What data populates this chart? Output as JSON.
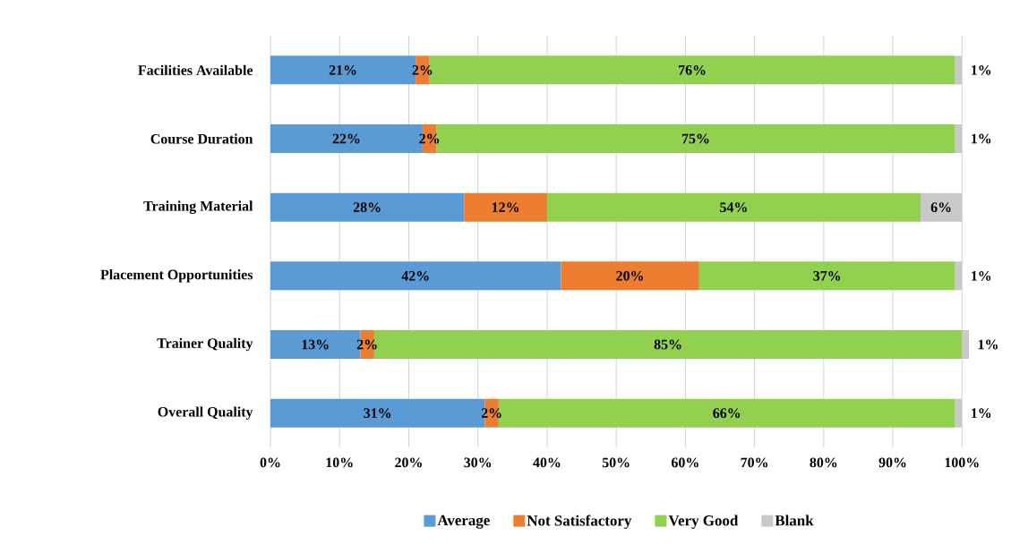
{
  "chart_data": {
    "type": "bar",
    "orientation": "horizontal",
    "stacked": true,
    "categories": [
      "Facilities Available",
      "Course Duration",
      "Training Material",
      "Placement Opportunities",
      "Trainer Quality",
      "Overall Quality"
    ],
    "series": [
      {
        "name": "Average",
        "color": "#5b9bd5",
        "values": [
          21,
          22,
          28,
          42,
          13,
          31
        ],
        "value_labels": [
          "21%",
          "22%",
          "28%",
          "42%",
          "13%",
          "31%"
        ]
      },
      {
        "name": "Not Satisfactory",
        "color": "#ed7d31",
        "values": [
          2,
          2,
          12,
          20,
          2,
          2
        ],
        "value_labels": [
          "2%",
          "2%",
          "12%",
          "20%",
          "2%",
          "2%"
        ]
      },
      {
        "name": "Very Good",
        "color": "#92d050",
        "values": [
          76,
          75,
          54,
          37,
          85,
          66
        ],
        "value_labels": [
          "76%",
          "75%",
          "54%",
          "37%",
          "85%",
          "66%"
        ]
      },
      {
        "name": "Blank",
        "color": "#c9c9c9",
        "values": [
          1,
          1,
          6,
          1,
          1,
          1
        ],
        "value_labels": [
          "1%",
          "1%",
          "6%",
          "1%",
          "1%",
          "1%"
        ]
      }
    ],
    "xlim": [
      0,
      101
    ],
    "xticks": [
      {
        "value": 0,
        "label": "0%"
      },
      {
        "value": 10,
        "label": "10%"
      },
      {
        "value": 20,
        "label": "20%"
      },
      {
        "value": 30,
        "label": "30%"
      },
      {
        "value": 40,
        "label": "40%"
      },
      {
        "value": 50,
        "label": "50%"
      },
      {
        "value": 60,
        "label": "60%"
      },
      {
        "value": 70,
        "label": "70%"
      },
      {
        "value": 80,
        "label": "80%"
      },
      {
        "value": 90,
        "label": "90%"
      },
      {
        "value": 100,
        "label": "100%"
      }
    ],
    "grid": "x",
    "legend": "bottom"
  }
}
